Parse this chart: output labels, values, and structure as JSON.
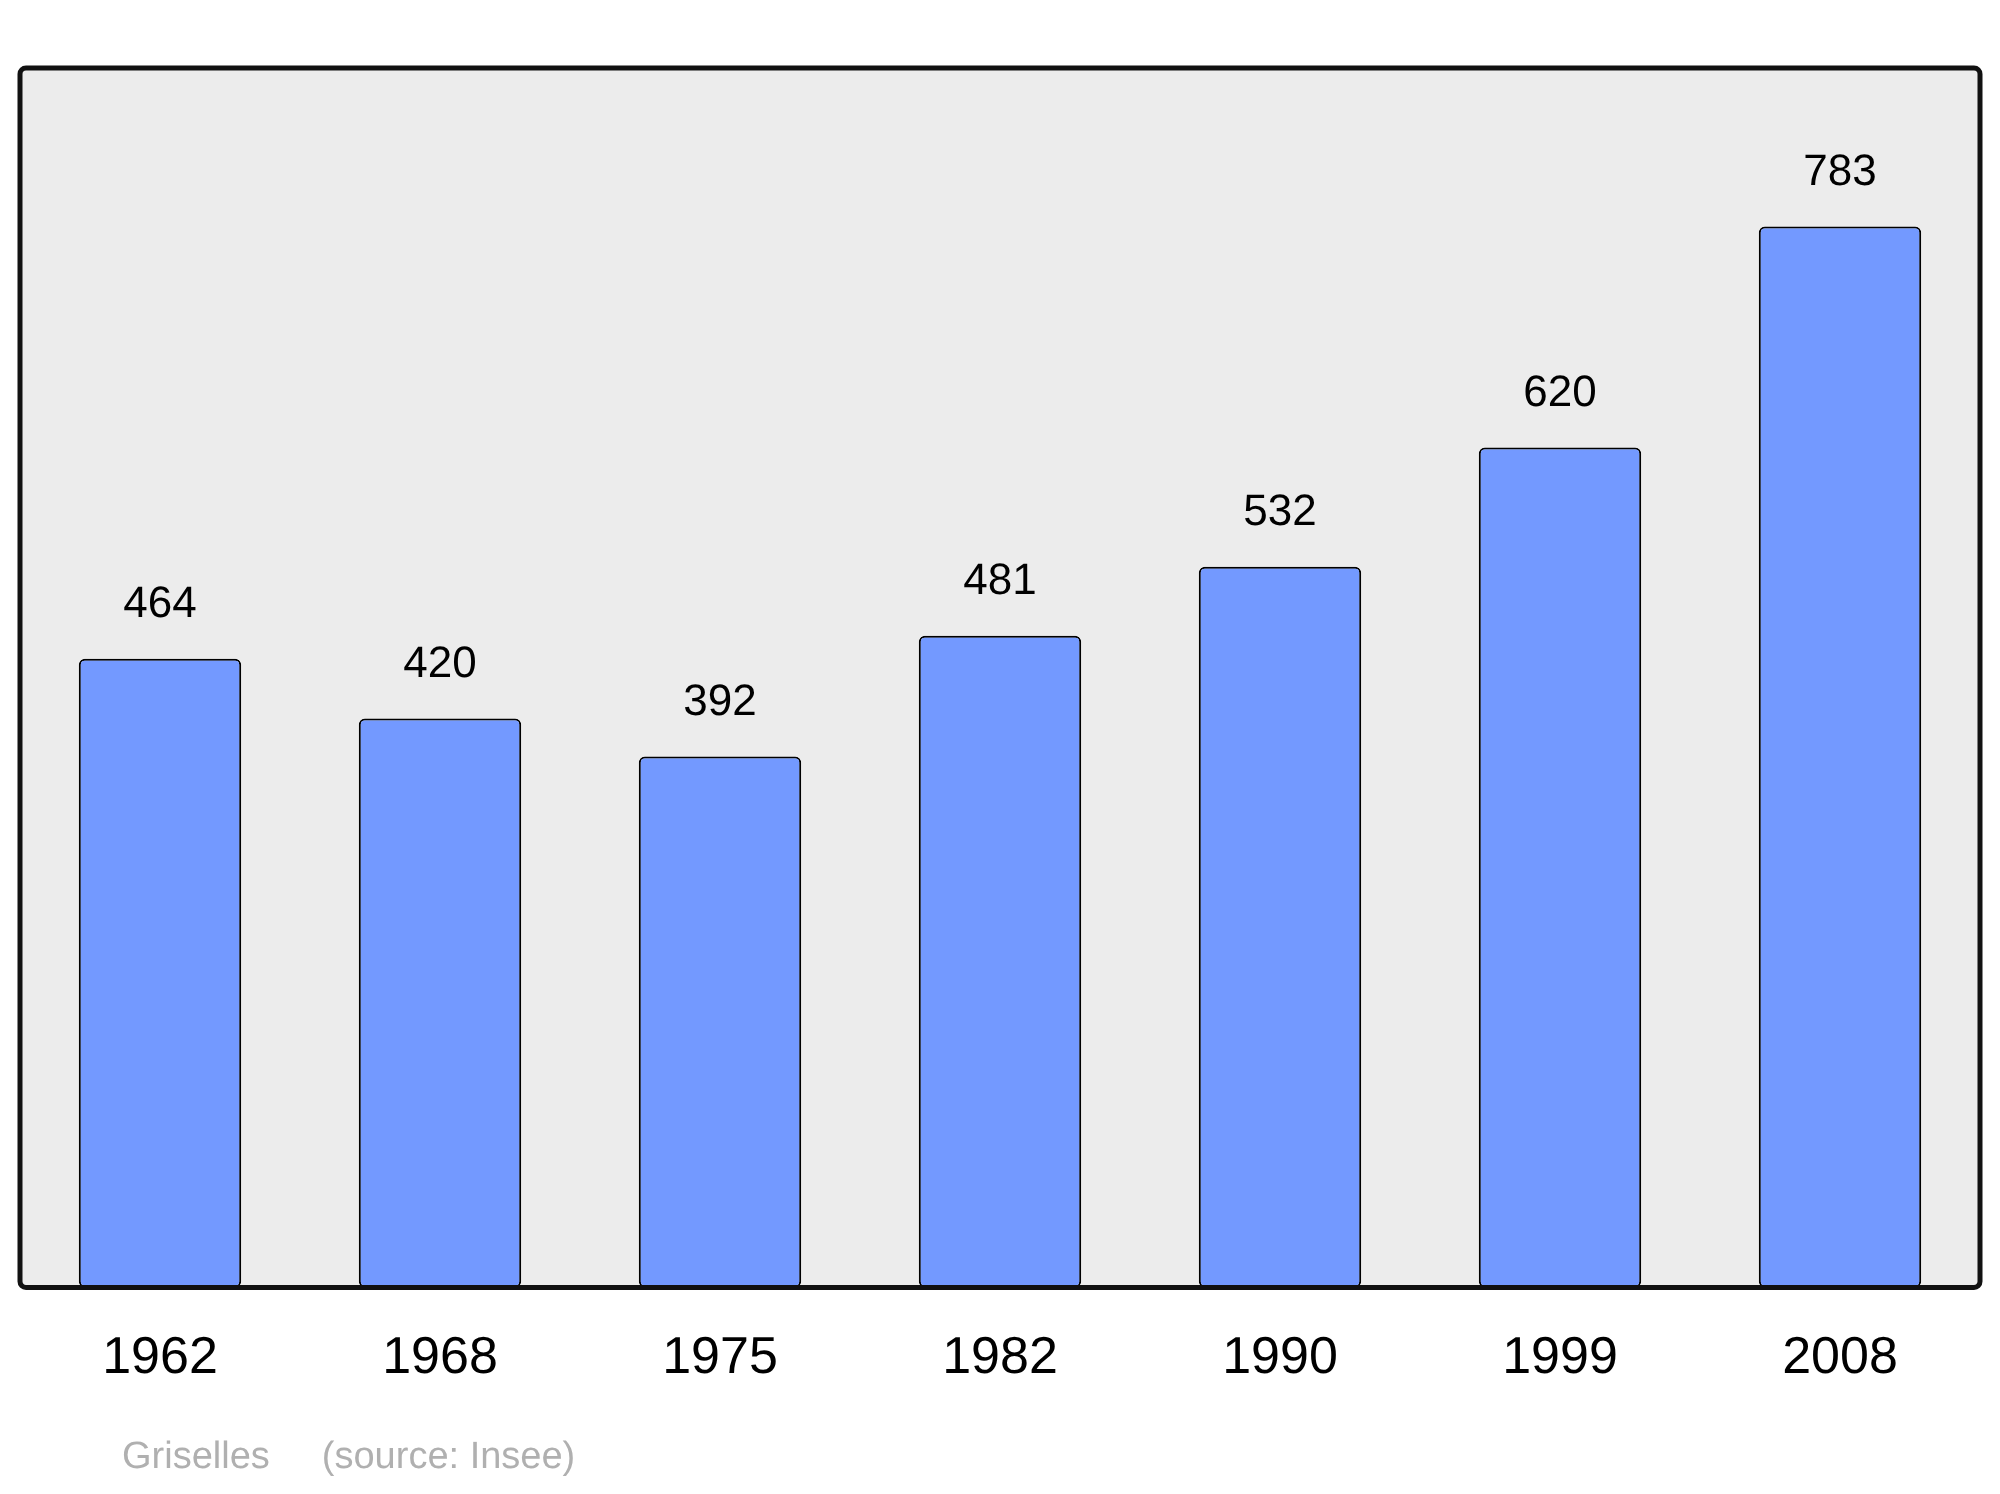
{
  "chart_data": {
    "type": "bar",
    "categories": [
      "1962",
      "1968",
      "1975",
      "1982",
      "1990",
      "1999",
      "2008"
    ],
    "values": [
      464,
      420,
      392,
      481,
      532,
      620,
      783
    ],
    "color": "#7399ff",
    "data_labels": true,
    "legend": false,
    "grid": false,
    "annotations": [
      "Griselles",
      "(source: Insee)"
    ]
  }
}
